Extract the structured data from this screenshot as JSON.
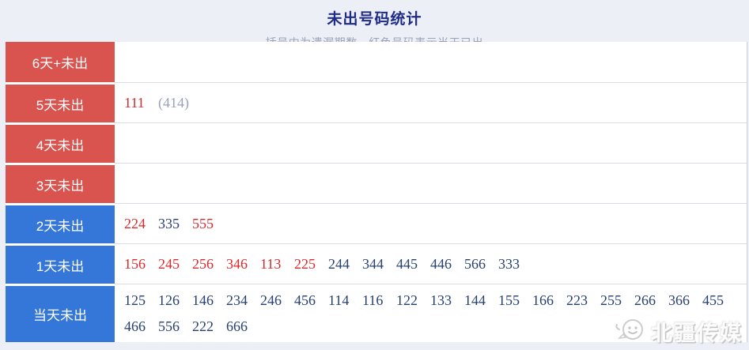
{
  "header": {
    "title": "未出号码统计",
    "subtitle": "括号内为遗漏期数，红色号码表示当天已出"
  },
  "colors": {
    "red_label_bg": "#d9534f",
    "blue_label_bg": "#3577d9",
    "red_number": "#d9292b",
    "navy_number": "#27406f",
    "gray_omission": "#98a0c0",
    "title_text": "#1f2c87",
    "page_background": "#edeff7"
  },
  "table": {
    "rows": [
      {
        "label": "6天+未出",
        "label_style": "red",
        "numbers": []
      },
      {
        "label": "5天未出",
        "label_style": "red",
        "numbers": [
          {
            "value": "111",
            "style": "red"
          },
          {
            "value": "(414)",
            "style": "gray"
          }
        ]
      },
      {
        "label": "4天未出",
        "label_style": "red",
        "numbers": []
      },
      {
        "label": "3天未出",
        "label_style": "red",
        "numbers": []
      },
      {
        "label": "2天未出",
        "label_style": "blue",
        "numbers": [
          {
            "value": "224",
            "style": "red"
          },
          {
            "value": "335",
            "style": "navy"
          },
          {
            "value": "555",
            "style": "red"
          }
        ]
      },
      {
        "label": "1天未出",
        "label_style": "blue",
        "numbers": [
          {
            "value": "156",
            "style": "red"
          },
          {
            "value": "245",
            "style": "red"
          },
          {
            "value": "256",
            "style": "red"
          },
          {
            "value": "346",
            "style": "red"
          },
          {
            "value": "113",
            "style": "red"
          },
          {
            "value": "225",
            "style": "red"
          },
          {
            "value": "244",
            "style": "navy"
          },
          {
            "value": "344",
            "style": "navy"
          },
          {
            "value": "445",
            "style": "navy"
          },
          {
            "value": "446",
            "style": "navy"
          },
          {
            "value": "566",
            "style": "navy"
          },
          {
            "value": "333",
            "style": "navy"
          }
        ]
      },
      {
        "label": "当天未出",
        "label_style": "blue",
        "numbers": [
          {
            "value": "125",
            "style": "navy"
          },
          {
            "value": "126",
            "style": "navy"
          },
          {
            "value": "146",
            "style": "navy"
          },
          {
            "value": "234",
            "style": "navy"
          },
          {
            "value": "246",
            "style": "navy"
          },
          {
            "value": "456",
            "style": "navy"
          },
          {
            "value": "114",
            "style": "navy"
          },
          {
            "value": "116",
            "style": "navy"
          },
          {
            "value": "122",
            "style": "navy"
          },
          {
            "value": "133",
            "style": "navy"
          },
          {
            "value": "144",
            "style": "navy"
          },
          {
            "value": "155",
            "style": "navy"
          },
          {
            "value": "166",
            "style": "navy"
          },
          {
            "value": "223",
            "style": "navy"
          },
          {
            "value": "255",
            "style": "navy"
          },
          {
            "value": "266",
            "style": "navy"
          },
          {
            "value": "366",
            "style": "navy"
          },
          {
            "value": "455",
            "style": "navy"
          },
          {
            "value": "466",
            "style": "navy"
          },
          {
            "value": "556",
            "style": "navy"
          },
          {
            "value": "222",
            "style": "navy"
          },
          {
            "value": "666",
            "style": "navy"
          }
        ]
      }
    ]
  },
  "watermark": {
    "text": "北疆传媒",
    "icon": "chat-face-icon"
  }
}
